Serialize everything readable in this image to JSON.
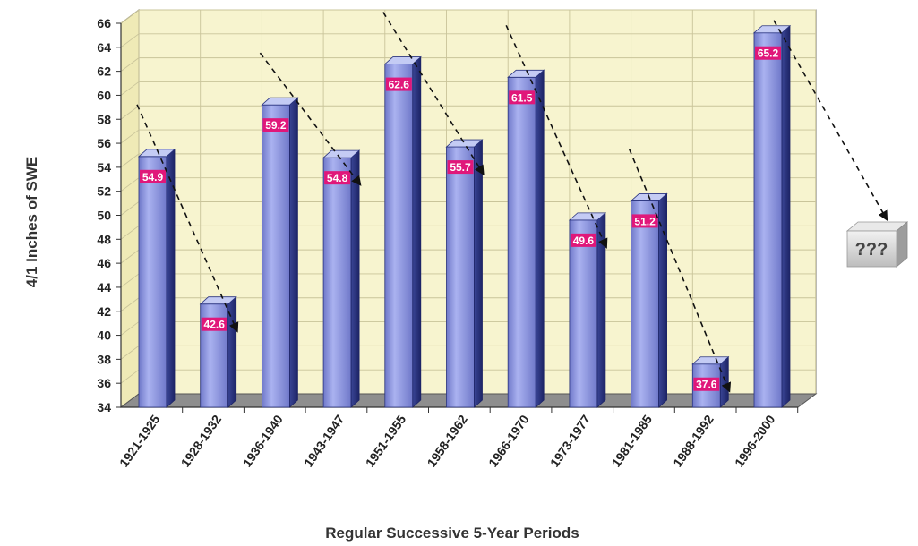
{
  "chart_data": {
    "type": "bar",
    "xlabel": "Regular Successive 5-Year Periods",
    "ylabel": "4/1 Inches of SWE",
    "ylim": [
      34,
      66
    ],
    "y_ticks": [
      34,
      36,
      38,
      40,
      42,
      44,
      46,
      48,
      50,
      52,
      54,
      56,
      58,
      60,
      62,
      64,
      66
    ],
    "categories": [
      "1921-1925",
      "1928-1932",
      "1936-1940",
      "1943-1947",
      "1951-1955",
      "1958-1962",
      "1966-1970",
      "1973-1977",
      "1981-1985",
      "1988-1992",
      "1996-2000"
    ],
    "values": [
      54.9,
      42.6,
      59.2,
      54.8,
      62.6,
      55.7,
      61.5,
      49.6,
      51.2,
      37.6,
      65.2
    ],
    "data_labels": [
      "54.9",
      "42.6",
      "59.2",
      "54.8",
      "62.6",
      "55.7",
      "61.5",
      "49.6",
      "51.2",
      "37.6",
      "65.2"
    ],
    "grid": true,
    "annotations": {
      "trend_arrows": "dashed arrows from each peak period down to the following period",
      "question_box": "???"
    },
    "colors": {
      "bar_front": "#8a93dd",
      "bar_side": "#2b3580",
      "bar_top": "#b9c0f0",
      "plot_background": "#f7f4cf",
      "floor": "#8e8e8e",
      "data_label_bg": "#e0177a"
    }
  }
}
